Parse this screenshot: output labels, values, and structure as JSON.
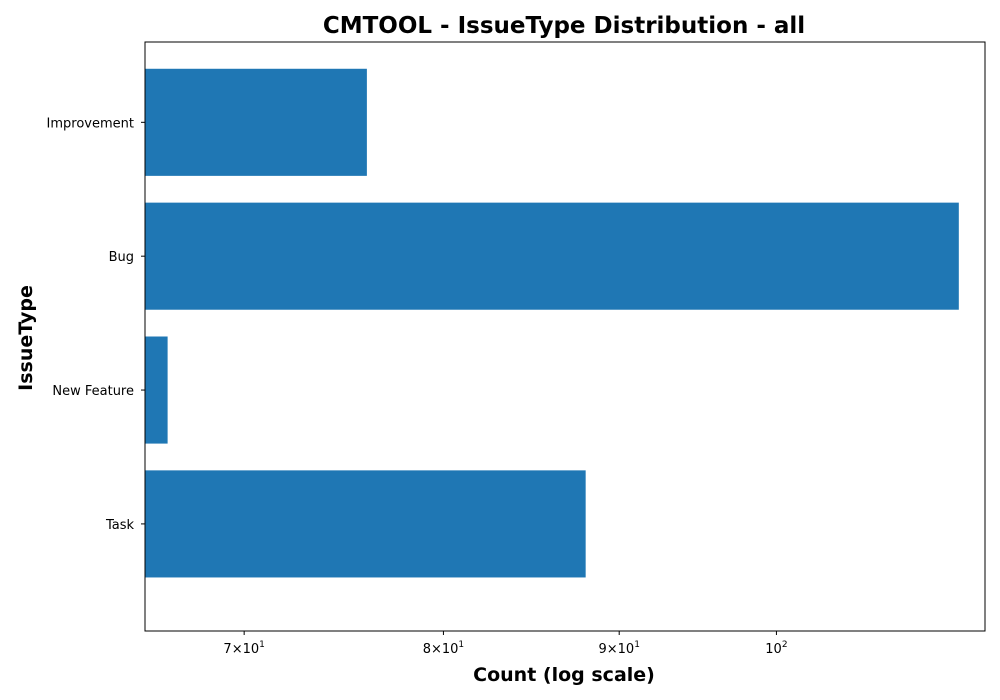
{
  "chart_data": {
    "type": "bar",
    "orientation": "horizontal",
    "title": "CMTOOL - IssueType Distribution - all",
    "xlabel": "Count (log scale)",
    "ylabel": "IssueType",
    "xscale": "log",
    "xlim": [
      65.5,
      115
    ],
    "categories": [
      "Improvement",
      "Bug",
      "New Feature",
      "Task"
    ],
    "values": [
      76,
      113,
      66.5,
      88
    ],
    "x_ticks": [
      {
        "value": 70,
        "mantissa": "7",
        "base": "10",
        "exp": "1"
      },
      {
        "value": 80,
        "mantissa": "8",
        "base": "10",
        "exp": "1"
      },
      {
        "value": 90,
        "mantissa": "9",
        "base": "10",
        "exp": "1"
      },
      {
        "value": 100,
        "mantissa": "",
        "base": "10",
        "exp": "2"
      }
    ],
    "bar_color": "#1f77b4",
    "grid": false,
    "legend": "none"
  }
}
